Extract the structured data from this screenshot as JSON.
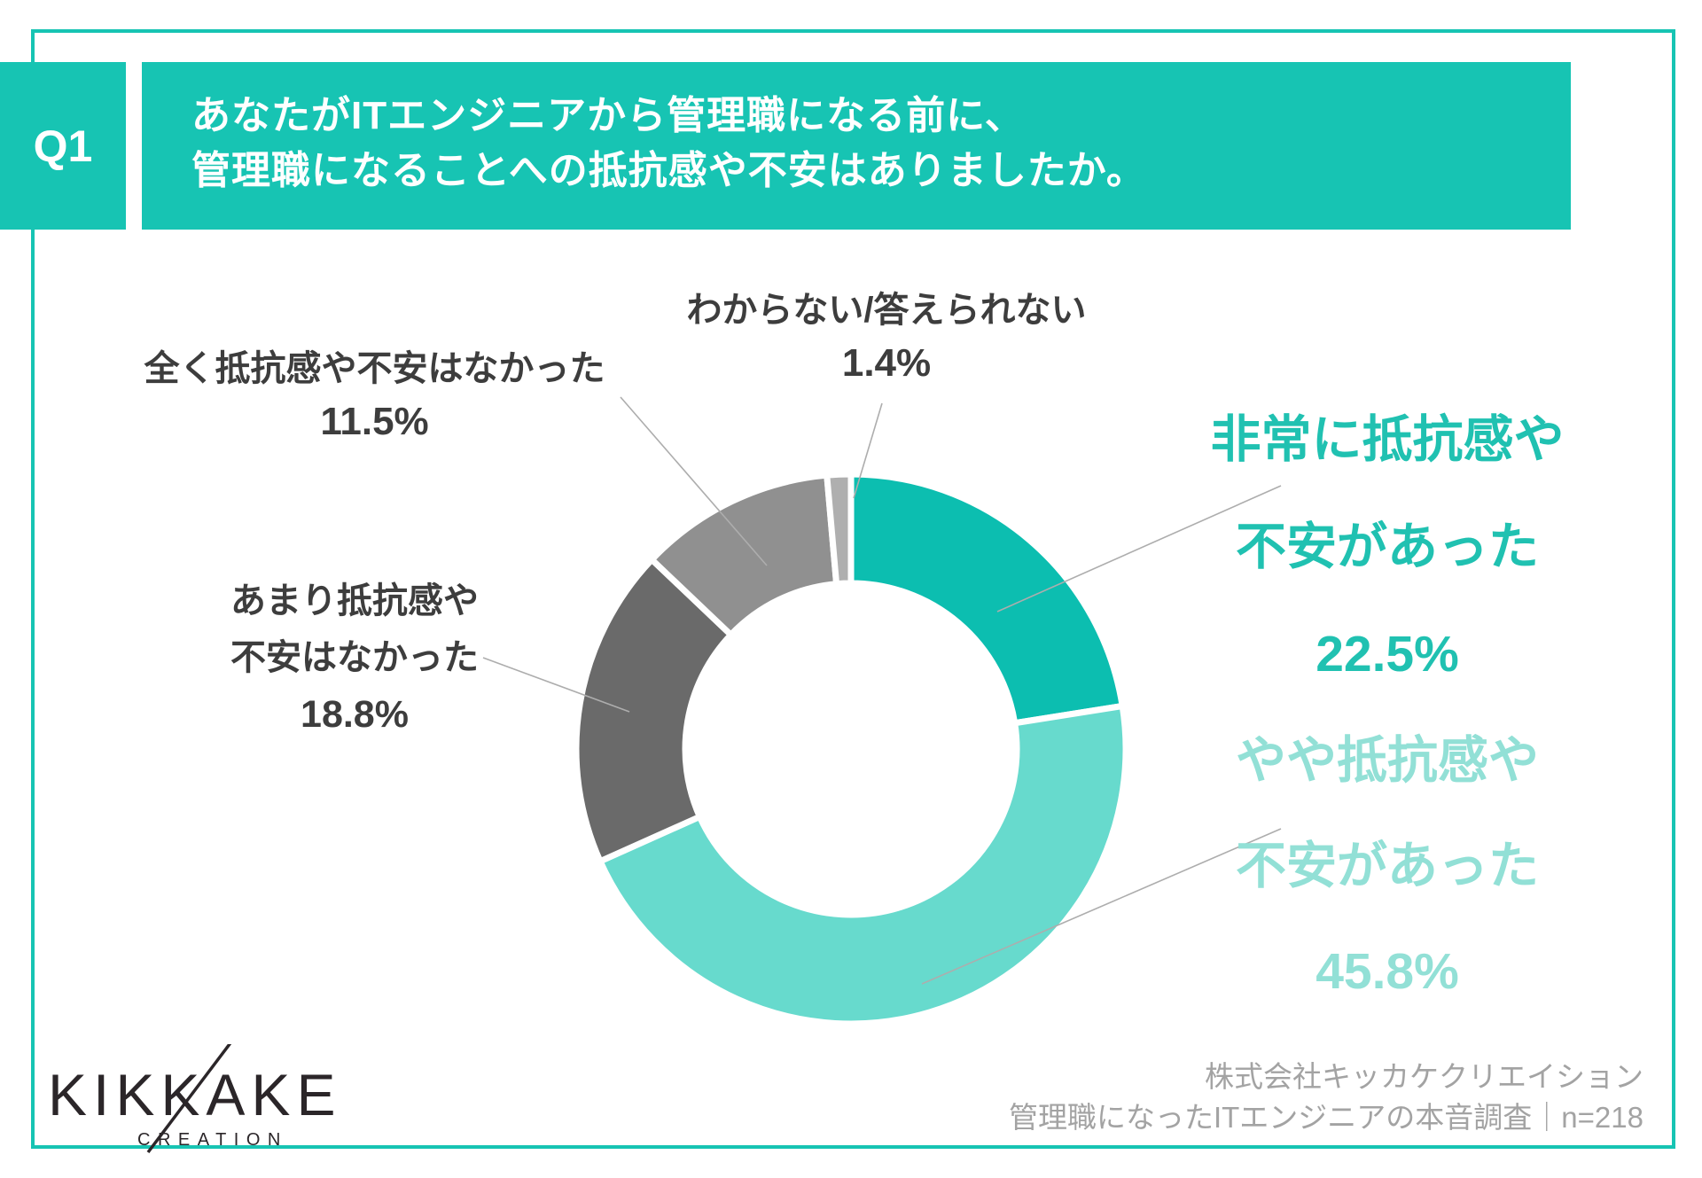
{
  "header": {
    "q_label": "Q1",
    "title_line1": "あなたがITエンジニアから管理職になる前に、",
    "title_line2": "管理職になることへの抵抗感や不安はありましたか。",
    "banner_color": "#17C4B3"
  },
  "chart_data": {
    "type": "pie",
    "subtype": "donut",
    "title": "管理職になることへの抵抗感や不安の有無",
    "start_angle_deg": 0,
    "direction": "clockwise",
    "legend_position": "outside-callouts",
    "segments": [
      {
        "label": "非常に抵抗感や不安があった",
        "value": 22.5,
        "color": "#0CBEB0"
      },
      {
        "label": "やや抵抗感や不安があった",
        "value": 45.8,
        "color": "#67DACD"
      },
      {
        "label": "あまり抵抗感や不安はなかった",
        "value": 18.8,
        "color": "#6A6A6A"
      },
      {
        "label": "全く抵抗感や不安はなかった",
        "value": 11.5,
        "color": "#909090"
      },
      {
        "label": "わからない/答えられない",
        "value": 1.4,
        "color": "#AFAFAF"
      }
    ]
  },
  "labels": {
    "very": {
      "line1": "非常に抵抗感や",
      "line2": "不安があった",
      "pct": "22.5%",
      "color": "#20C1B1"
    },
    "somewhat": {
      "line1": "やや抵抗感や",
      "line2": "不安があった",
      "pct": "45.8%",
      "color": "#92E0D6"
    },
    "not_much": {
      "line1": "あまり抵抗感や",
      "line2": "不安はなかった",
      "pct": "18.8%"
    },
    "none": {
      "line1": "全く抵抗感や不安はなかった",
      "pct": "11.5%"
    },
    "unknown": {
      "line1": "わからない/答えられない",
      "pct": "1.4%"
    }
  },
  "footer": {
    "logo_text": "KIKKAKE",
    "logo_sub": "CREATION",
    "source_line1": "株式会社キッカケクリエイション",
    "source_line2": "管理職になったITエンジニアの本音調査｜n=218"
  }
}
